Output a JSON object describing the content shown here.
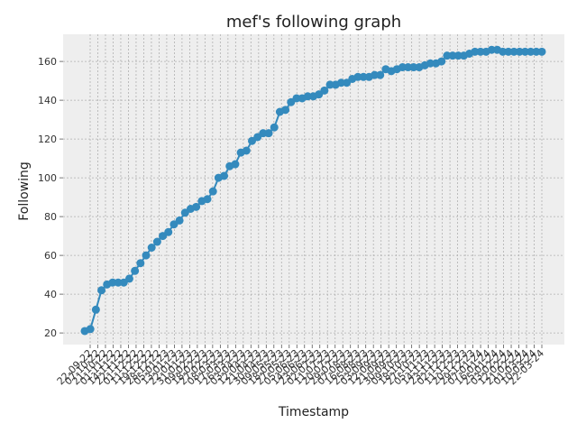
{
  "chart_data": {
    "type": "line",
    "title": "mef's following graph",
    "xlabel": "Timestamp",
    "ylabel": "Following",
    "ylim": [
      14,
      174
    ],
    "yticks": [
      20,
      40,
      60,
      80,
      100,
      120,
      140,
      160
    ],
    "grid": true,
    "legend": "none",
    "colors": {
      "series": "#348abd",
      "plot_bg": "#eeeeee",
      "grid": "#b0b0b0",
      "frame": "#bcbcbc"
    },
    "xticks": [
      "22-09-22",
      "07-10-22",
      "21-10-22",
      "01-11-22",
      "14-11-22",
      "22-11-22",
      "01-12-22",
      "11-12-22",
      "19-12-22",
      "28-12-22",
      "05-01-23",
      "13-01-23",
      "22-01-23",
      "31-01-23",
      "09-02-23",
      "18-02-23",
      "27-02-23",
      "08-03-23",
      "17-03-23",
      "26-03-23",
      "03-04-23",
      "12-04-23",
      "21-04-23",
      "30-04-23",
      "09-05-23",
      "18-05-23",
      "27-05-23",
      "05-06-23",
      "14-06-23",
      "23-06-23",
      "02-07-23",
      "11-07-23",
      "20-07-23",
      "29-07-23",
      "07-08-23",
      "16-08-23",
      "25-08-23",
      "03-09-23",
      "12-09-23",
      "21-09-23",
      "30-09-23",
      "09-10-23",
      "18-10-23",
      "27-10-23",
      "05-11-23",
      "14-11-23",
      "23-11-23",
      "02-12-23",
      "11-12-23",
      "20-12-23",
      "29-12-23",
      "07-01-24",
      "16-01-24",
      "25-01-24",
      "03-02-24",
      "12-02-24",
      "21-02-24",
      "01-03-24",
      "10-03-24",
      "22-03-24"
    ],
    "series": [
      {
        "values": [
          21,
          22,
          32,
          42,
          45,
          46,
          46,
          46,
          48,
          52,
          56,
          60,
          64,
          67,
          70,
          72,
          76,
          78,
          82,
          84,
          85,
          88,
          89,
          93,
          100,
          101,
          106,
          107,
          113,
          114,
          119,
          121,
          123,
          123,
          126,
          134,
          135,
          139,
          141,
          141,
          142,
          142,
          143,
          145,
          148,
          148,
          149,
          149,
          151,
          152,
          152,
          152,
          153,
          153,
          156,
          155,
          156,
          157,
          157,
          157,
          157,
          158,
          159,
          159,
          160,
          163,
          163,
          163,
          163,
          164,
          165,
          165,
          165,
          166,
          166,
          165,
          165,
          165,
          165,
          165,
          165,
          165,
          165
        ]
      }
    ]
  }
}
